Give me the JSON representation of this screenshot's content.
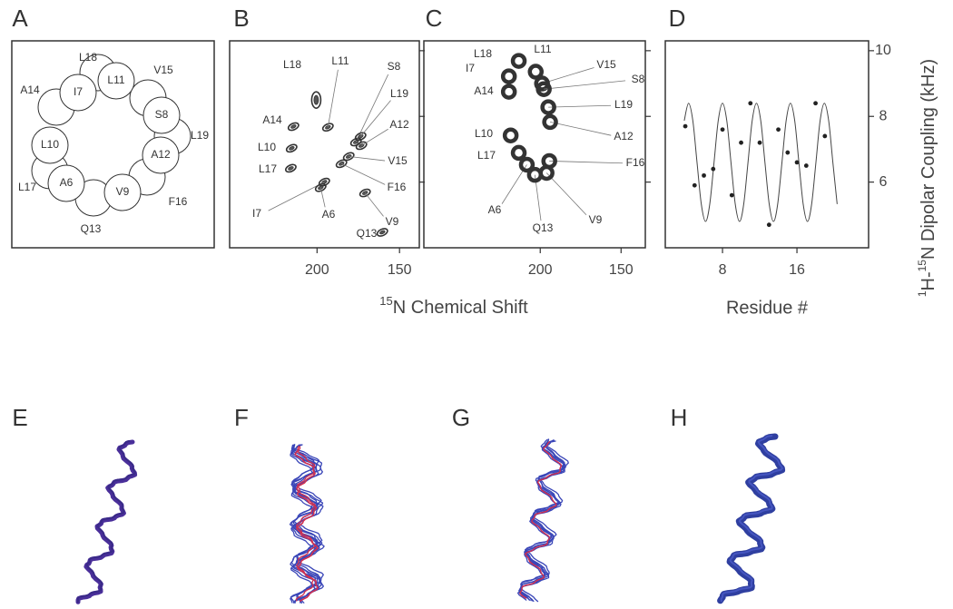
{
  "panels": {
    "A": {
      "label": "A",
      "inside": [
        "I7",
        "L11",
        "S8",
        "A12",
        "V9",
        "A6",
        "L10"
      ],
      "outside": [
        "L18",
        "V15",
        "L19",
        "F16",
        "Q13",
        "L17",
        "A14"
      ]
    },
    "B": {
      "label": "B",
      "type": "contour",
      "peaks": [
        {
          "name": "L18",
          "x": 200.5,
          "y": 8.5
        },
        {
          "name": "L11",
          "x": 193.4,
          "y": 7.67
        },
        {
          "name": "S8",
          "x": 176.4,
          "y": 7.22
        },
        {
          "name": "L19",
          "x": 173.6,
          "y": 7.39
        },
        {
          "name": "A14",
          "x": 214.3,
          "y": 7.69
        },
        {
          "name": "A12",
          "x": 173.1,
          "y": 7.11
        },
        {
          "name": "L10",
          "x": 215.4,
          "y": 7.03
        },
        {
          "name": "V15",
          "x": 180.8,
          "y": 6.78
        },
        {
          "name": "L17",
          "x": 215.9,
          "y": 6.42
        },
        {
          "name": "F16",
          "x": 185.2,
          "y": 6.56
        },
        {
          "name": "I7",
          "x": 195.6,
          "y": 6.0
        },
        {
          "name": "A6",
          "x": 197.8,
          "y": 5.83
        },
        {
          "name": "V9",
          "x": 170.9,
          "y": 5.67
        },
        {
          "name": "Q13",
          "x": 160.4,
          "y": 4.47
        }
      ],
      "xlim": [
        253,
        138
      ],
      "xticks": [
        200,
        150
      ],
      "ylim": [
        4,
        10.3
      ],
      "yticks": [
        6,
        8,
        10
      ]
    },
    "C": {
      "label": "C",
      "type": "scatter",
      "points": [
        {
          "name": "L18",
          "x": 213.3,
          "y": 9.69
        },
        {
          "name": "L11",
          "x": 202.8,
          "y": 9.36
        },
        {
          "name": "I7",
          "x": 219.4,
          "y": 9.22
        },
        {
          "name": "V15",
          "x": 198.9,
          "y": 9.0
        },
        {
          "name": "A14",
          "x": 219.4,
          "y": 8.75
        },
        {
          "name": "S8",
          "x": 197.8,
          "y": 8.83
        },
        {
          "name": "L19",
          "x": 195.0,
          "y": 8.28
        },
        {
          "name": "L10",
          "x": 218.3,
          "y": 7.42
        },
        {
          "name": "A12",
          "x": 193.9,
          "y": 7.83
        },
        {
          "name": "L17",
          "x": 213.3,
          "y": 6.89
        },
        {
          "name": "F16",
          "x": 194.4,
          "y": 6.64
        },
        {
          "name": "A6",
          "x": 208.3,
          "y": 6.53
        },
        {
          "name": "Q13",
          "x": 203.3,
          "y": 6.22
        },
        {
          "name": "V9",
          "x": 196.1,
          "y": 6.28
        }
      ],
      "xlim": [
        272,
        135
      ],
      "xticks": [
        200,
        150
      ],
      "ylim": [
        4,
        10.3
      ],
      "yticks": [
        6,
        8,
        10
      ]
    },
    "D": {
      "label": "D",
      "type": "scatter-fit",
      "x": [
        4,
        5,
        6,
        7,
        8,
        9,
        10,
        11,
        12,
        13,
        14,
        15,
        16,
        17,
        18,
        19
      ],
      "values": [
        7.7,
        5.9,
        6.2,
        6.4,
        7.6,
        5.6,
        7.2,
        8.4,
        7.2,
        4.7,
        7.6,
        6.9,
        6.6,
        6.5,
        8.4,
        7.4
      ],
      "fit": {
        "x": [
          3.89,
          4.35,
          4.81,
          5.26,
          5.72,
          6.18,
          6.63,
          7.09,
          7.54,
          8.0,
          8.46,
          8.91,
          9.37,
          9.83,
          10.28,
          10.74,
          11.19,
          11.65,
          12.11,
          12.56,
          13.02,
          13.48,
          13.93,
          14.39,
          14.84,
          15.3,
          15.76,
          16.21,
          16.67,
          17.13,
          17.58,
          18.04,
          18.49,
          18.95,
          19.41,
          19.86,
          20.32
        ],
        "y": [
          7.87,
          8.4,
          7.87,
          6.6,
          5.33,
          4.8,
          5.33,
          6.6,
          7.87,
          8.4,
          7.87,
          6.6,
          5.33,
          4.8,
          5.33,
          6.6,
          7.87,
          8.4,
          7.87,
          6.6,
          5.33,
          4.8,
          5.33,
          6.6,
          7.87,
          8.4,
          7.87,
          6.6,
          5.33,
          4.8,
          5.33,
          6.6,
          7.87,
          8.4,
          7.87,
          6.6,
          5.33
        ]
      },
      "xlim": [
        1.85,
        23.7
      ],
      "xticks": [
        8,
        16
      ],
      "ylim": [
        4,
        10.3
      ],
      "yticks": [
        6,
        8,
        10
      ],
      "xlabel": "Residue #",
      "ylabel": [
        {
          "text": "1",
          "sup": true
        },
        {
          "text": "H-",
          "sup": false
        },
        {
          "text": "15",
          "sup": true
        },
        {
          "text": "N Dipolar Coupling (kHz)",
          "sup": false
        }
      ]
    },
    "BC_xlabel": [
      {
        "text": "15",
        "sup": true
      },
      {
        "text": "N Chemical Shift",
        "sup": false
      }
    ],
    "E": {
      "label": "E"
    },
    "F": {
      "label": "F"
    },
    "G": {
      "label": "G"
    },
    "H": {
      "label": "H"
    }
  }
}
